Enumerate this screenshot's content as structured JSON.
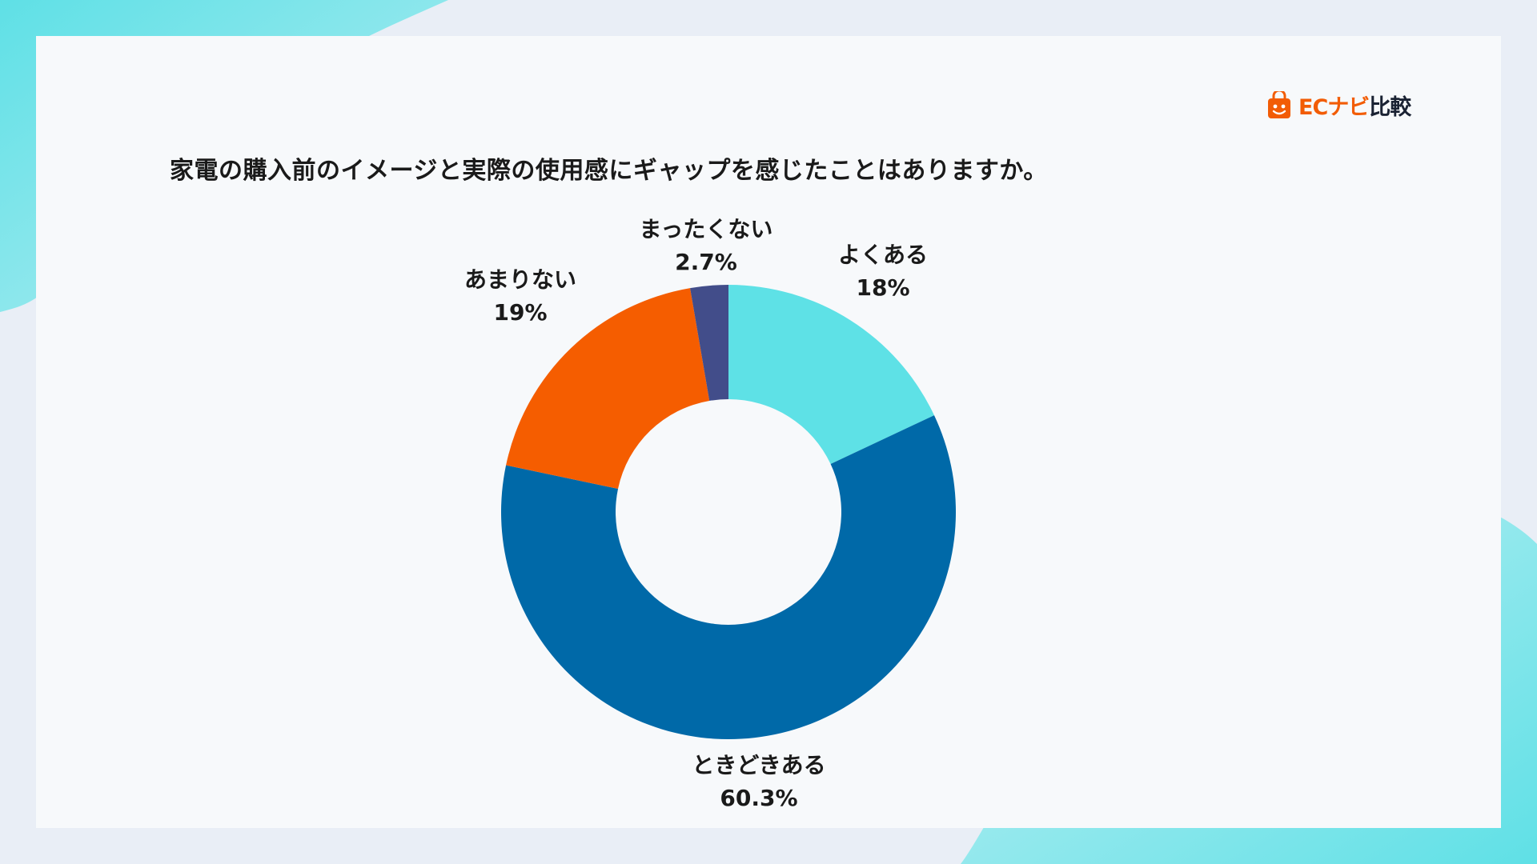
{
  "title": "家電の購入前のイメージと実際の使用感にギャップを感じたことはありますか。",
  "logo": {
    "brand_accent": "ECナビ",
    "brand_dark": "比較",
    "icon": "shopping-bag-icon"
  },
  "colors": {
    "background": "#e9eef6",
    "card": "#f7f9fb",
    "decor_cyan": "#5fe0e6",
    "logo_orange": "#f25c05"
  },
  "chart_data": {
    "type": "pie",
    "donut": true,
    "title": "家電の購入前のイメージと実際の使用感にギャップを感じたことはありますか。",
    "start_angle_deg": 0,
    "direction": "clockwise",
    "slices": [
      {
        "label": "よくある",
        "value": 18,
        "value_label": "18%",
        "color": "#5ee1e6"
      },
      {
        "label": "ときどきある",
        "value": 60.3,
        "value_label": "60.3%",
        "color": "#0069a8"
      },
      {
        "label": "あまりない",
        "value": 19,
        "value_label": "19%",
        "color": "#f55d00"
      },
      {
        "label": "まったくない",
        "value": 2.7,
        "value_label": "2.7%",
        "color": "#424d8a"
      }
    ]
  }
}
